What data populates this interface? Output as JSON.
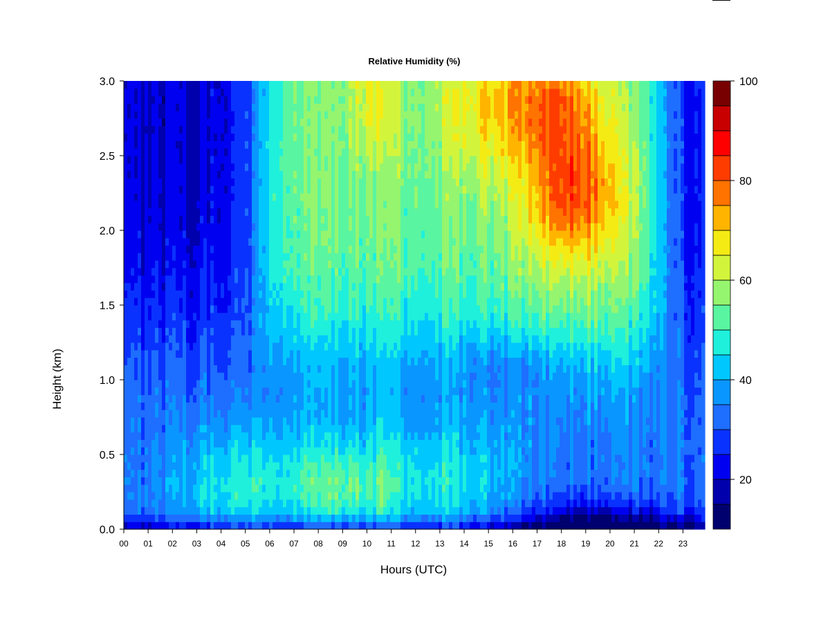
{
  "chart_data": {
    "type": "heatmap",
    "title": "Relative Humidity (%)",
    "xlabel": "Hours (UTC)",
    "ylabel": "Height (km)",
    "x_ticks": [
      "00",
      "01",
      "02",
      "03",
      "04",
      "05",
      "06",
      "07",
      "08",
      "09",
      "10",
      "11",
      "12",
      "13",
      "14",
      "15",
      "16",
      "17",
      "18",
      "19",
      "20",
      "21",
      "22",
      "23"
    ],
    "y_ticks": [
      "0.0",
      "0.5",
      "1.0",
      "1.5",
      "2.0",
      "2.5",
      "3.0"
    ],
    "xlim": [
      0,
      23.9
    ],
    "ylim": [
      0,
      3.0
    ],
    "colorbar": {
      "levels": [
        10,
        15,
        20,
        25,
        30,
        35,
        40,
        45,
        50,
        55,
        60,
        65,
        70,
        75,
        80,
        85,
        90,
        95,
        100
      ],
      "tick_labels": [
        "20",
        "40",
        "60",
        "80",
        "100"
      ],
      "tick_values": [
        20,
        40,
        60,
        80,
        100
      ],
      "colors": [
        "#00006e",
        "#0000ad",
        "#0000f0",
        "#0a32ff",
        "#1e6eff",
        "#0a96ff",
        "#00c8ff",
        "#1ef0dc",
        "#5af5a0",
        "#96f56e",
        "#d2f53c",
        "#f5eb14",
        "#ffb400",
        "#ff7300",
        "#ff3c00",
        "#ff0000",
        "#c80000",
        "#780000"
      ]
    },
    "grid": false,
    "legend": "colorbar-right"
  }
}
